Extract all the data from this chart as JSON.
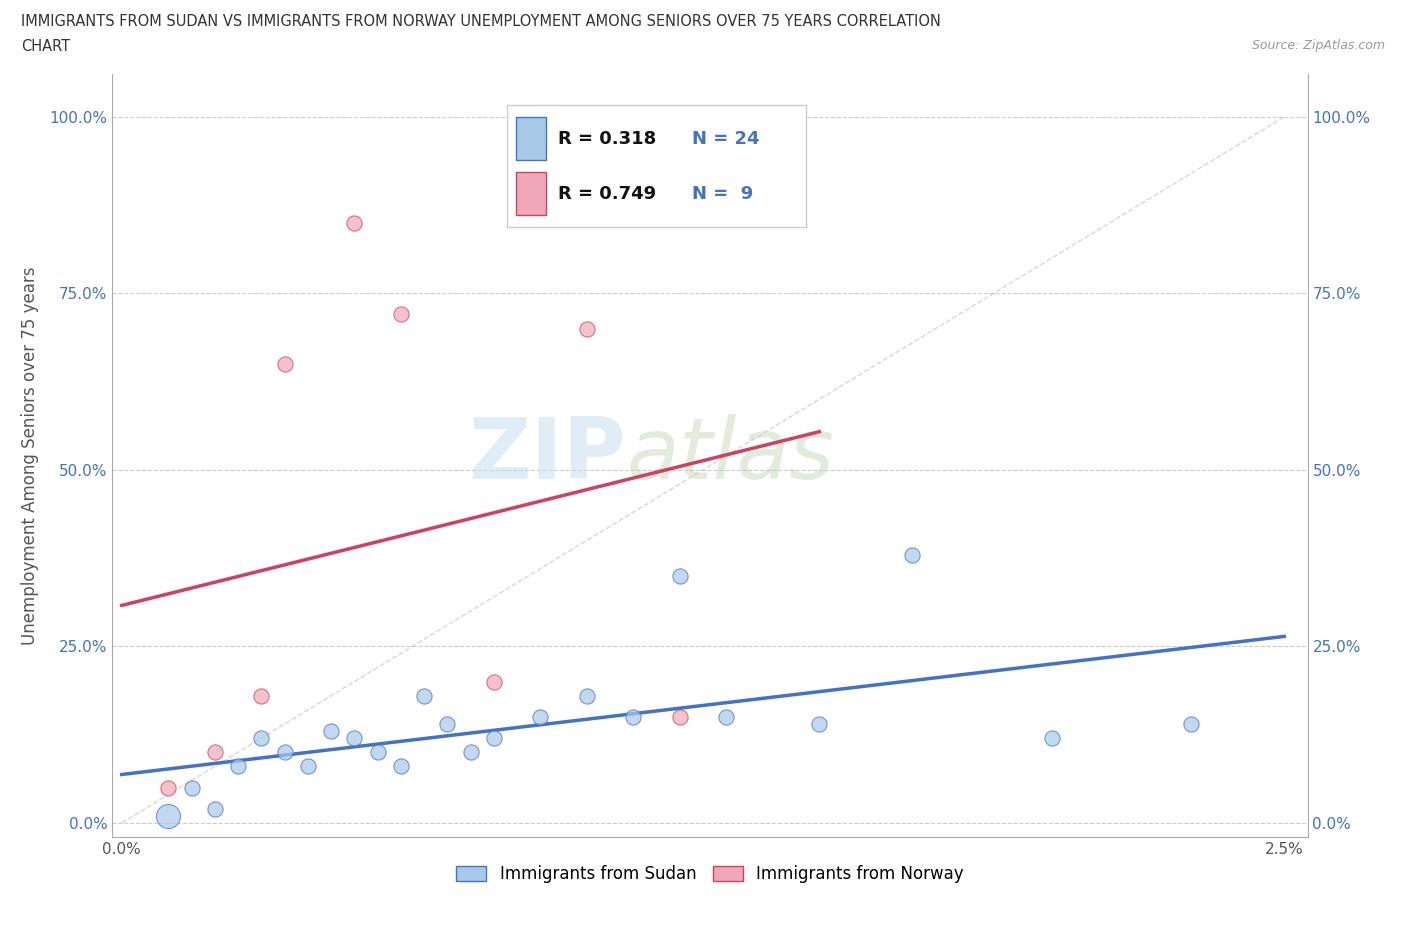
{
  "title_line1": "IMMIGRANTS FROM SUDAN VS IMMIGRANTS FROM NORWAY UNEMPLOYMENT AMONG SENIORS OVER 75 YEARS CORRELATION",
  "title_line2": "CHART",
  "source": "Source: ZipAtlas.com",
  "ylabel": "Unemployment Among Seniors over 75 years",
  "r_sudan": 0.318,
  "n_sudan": 24,
  "r_norway": 0.749,
  "n_norway": 9,
  "sudan_color": "#a8c8e8",
  "norway_color": "#f0a8b8",
  "sudan_line_color": "#4472c4",
  "norway_line_color": "#d04060",
  "background_color": "#ffffff",
  "sudan_x": [
    0.1,
    0.15,
    0.2,
    0.25,
    0.3,
    0.35,
    0.4,
    0.45,
    0.5,
    0.55,
    0.6,
    0.65,
    0.7,
    0.75,
    0.8,
    0.9,
    1.0,
    1.1,
    1.2,
    1.3,
    1.5,
    1.7,
    2.0,
    2.3
  ],
  "sudan_y": [
    1.0,
    5.0,
    2.0,
    8.0,
    12.0,
    10.0,
    8.0,
    13.0,
    12.0,
    10.0,
    8.0,
    18.0,
    14.0,
    10.0,
    12.0,
    15.0,
    18.0,
    15.0,
    35.0,
    15.0,
    14.0,
    38.0,
    12.0,
    14.0
  ],
  "norway_x": [
    0.1,
    0.2,
    0.3,
    0.35,
    0.5,
    0.6,
    0.8,
    1.0,
    1.2
  ],
  "norway_y": [
    5.0,
    10.0,
    18.0,
    65.0,
    85.0,
    72.0,
    20.0,
    70.0,
    15.0
  ],
  "sudan_sizes": [
    300,
    120,
    120,
    120,
    120,
    120,
    120,
    120,
    120,
    120,
    120,
    120,
    120,
    120,
    120,
    120,
    120,
    120,
    120,
    120,
    120,
    120,
    120,
    120
  ],
  "norway_sizes": [
    120,
    120,
    120,
    120,
    120,
    120,
    120,
    120,
    120
  ],
  "yticks": [
    0,
    25,
    50,
    75,
    100
  ],
  "ytick_labels": [
    "0.0%",
    "25.0%",
    "50.0%",
    "75.0%",
    "100.0%"
  ],
  "xtick_labels": [
    "0.0%",
    "",
    "",
    "",
    "",
    "2.5%"
  ],
  "watermark_zip": "ZIP",
  "watermark_atlas": "atlas",
  "legend_labels": [
    "Immigrants from Sudan",
    "Immigrants from Norway"
  ]
}
